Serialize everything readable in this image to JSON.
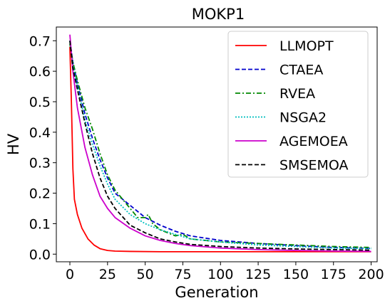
{
  "chart_data": {
    "type": "line",
    "title": "MOKP1",
    "xlabel": "Generation",
    "ylabel": "HV",
    "xlim": [
      -9,
      204
    ],
    "ylim": [
      -0.025,
      0.745
    ],
    "xticks": [
      0,
      25,
      50,
      75,
      100,
      125,
      150,
      175,
      200
    ],
    "yticks": [
      0.0,
      0.1,
      0.2,
      0.3,
      0.4,
      0.5,
      0.6,
      0.7
    ],
    "xtick_labels": [
      "0",
      "25",
      "50",
      "75",
      "100",
      "125",
      "150",
      "175",
      "200"
    ],
    "ytick_labels": [
      "0.0",
      "0.1",
      "0.2",
      "0.3",
      "0.4",
      "0.5",
      "0.6",
      "0.7"
    ],
    "grid": false,
    "legend_position": "top-right",
    "series": [
      {
        "name": "LLMOPT",
        "color": "#ff0000",
        "dash": "solid",
        "x": [
          0,
          1,
          2,
          3,
          5,
          8,
          12,
          16,
          20,
          25,
          30,
          40,
          60,
          100,
          200
        ],
        "y": [
          0.68,
          0.5,
          0.28,
          0.18,
          0.13,
          0.085,
          0.05,
          0.03,
          0.018,
          0.012,
          0.01,
          0.009,
          0.008,
          0.008,
          0.008
        ]
      },
      {
        "name": "CTAEA",
        "color": "#0000cc",
        "dash": "dashed",
        "x": [
          0,
          2,
          5,
          10,
          15,
          20,
          25,
          30,
          40,
          50,
          60,
          70,
          80,
          100,
          125,
          150,
          175,
          200
        ],
        "y": [
          0.7,
          0.63,
          0.56,
          0.46,
          0.38,
          0.31,
          0.25,
          0.2,
          0.16,
          0.12,
          0.095,
          0.075,
          0.06,
          0.045,
          0.035,
          0.028,
          0.022,
          0.019
        ]
      },
      {
        "name": "RVEA",
        "color": "#008800",
        "dash": "dashdot",
        "x": [
          0,
          2,
          5,
          10,
          15,
          20,
          25,
          30,
          40,
          45,
          50,
          52,
          55,
          60,
          65,
          70,
          75,
          80,
          90,
          100,
          125,
          150,
          175,
          200
        ],
        "y": [
          0.69,
          0.63,
          0.57,
          0.48,
          0.41,
          0.33,
          0.26,
          0.21,
          0.15,
          0.12,
          0.12,
          0.13,
          0.1,
          0.08,
          0.07,
          0.06,
          0.065,
          0.05,
          0.045,
          0.04,
          0.035,
          0.03,
          0.025,
          0.022
        ]
      },
      {
        "name": "NSGA2",
        "color": "#00bfbf",
        "dash": "dotted",
        "x": [
          0,
          2,
          5,
          10,
          15,
          20,
          25,
          30,
          40,
          50,
          60,
          70,
          80,
          100,
          125,
          150,
          175,
          200
        ],
        "y": [
          0.7,
          0.62,
          0.55,
          0.44,
          0.36,
          0.29,
          0.23,
          0.18,
          0.13,
          0.1,
          0.08,
          0.065,
          0.05,
          0.04,
          0.03,
          0.025,
          0.02,
          0.018
        ]
      },
      {
        "name": "AGEMOEA",
        "color": "#cc00cc",
        "dash": "solid",
        "x": [
          0,
          2,
          5,
          10,
          15,
          20,
          25,
          30,
          40,
          50,
          60,
          70,
          80,
          100,
          125,
          150,
          175,
          200
        ],
        "y": [
          0.72,
          0.6,
          0.48,
          0.35,
          0.26,
          0.19,
          0.15,
          0.12,
          0.085,
          0.06,
          0.045,
          0.035,
          0.028,
          0.02,
          0.015,
          0.012,
          0.01,
          0.009
        ]
      },
      {
        "name": "SMSEMOA",
        "color": "#000000",
        "dash": "dashed",
        "x": [
          0,
          2,
          5,
          10,
          15,
          20,
          25,
          30,
          40,
          50,
          60,
          70,
          80,
          100,
          125,
          150,
          175,
          200
        ],
        "y": [
          0.7,
          0.61,
          0.54,
          0.43,
          0.33,
          0.25,
          0.19,
          0.15,
          0.095,
          0.07,
          0.05,
          0.04,
          0.032,
          0.025,
          0.02,
          0.017,
          0.015,
          0.013
        ]
      }
    ]
  }
}
